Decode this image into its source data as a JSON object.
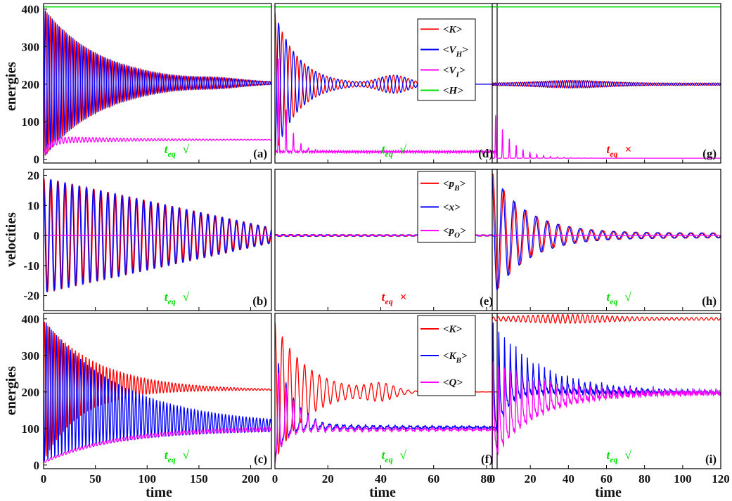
{
  "figure": {
    "ylabels": [
      "energies",
      "velocities",
      "energies"
    ],
    "xlabel": "time",
    "teq_text": "t",
    "teq_sub": "eq",
    "check": "√",
    "cross": "×"
  },
  "colors": {
    "red": "#ff0000",
    "blue": "#0000ff",
    "magenta": "#ff00ff",
    "green": "#00dd00",
    "black": "#000000"
  },
  "chart_data": [
    {
      "id": "a",
      "label": "(a)",
      "type": "line",
      "xlim": [
        0,
        220
      ],
      "ylim": [
        -10,
        415
      ],
      "yticks": [
        0,
        100,
        200,
        300,
        400
      ],
      "teq": "ok",
      "series": [
        {
          "color": "red",
          "kind": "decay",
          "x0": 0,
          "x1": 220,
          "mean": 203,
          "amp": 200,
          "period": 3.33,
          "tau": 55,
          "phase": 1.57,
          "beat": 0.03,
          "beatx": 170
        },
        {
          "color": "blue",
          "kind": "decay",
          "x0": 0,
          "x1": 220,
          "mean": 203,
          "amp": 200,
          "period": 3.33,
          "tau": 55,
          "phase": 4.71,
          "beat": 0.03,
          "beatx": 170
        },
        {
          "color": "magenta",
          "kind": "rise",
          "x0": 0,
          "x1": 220,
          "start": 10,
          "end": 52,
          "rtau": 6,
          "amp": 10,
          "period": 3.33,
          "tau": 90
        },
        {
          "color": "green",
          "kind": "flat",
          "x0": 0,
          "x1": 220,
          "value": 406
        }
      ]
    },
    {
      "id": "b",
      "label": "(b)",
      "type": "line",
      "xlim": [
        0,
        220
      ],
      "ylim": [
        -25,
        22
      ],
      "yticks": [
        -20,
        -10,
        0,
        10,
        20
      ],
      "teq": "ok",
      "series": [
        {
          "color": "red",
          "kind": "linear",
          "x0": 0,
          "x1": 220,
          "mean": 0,
          "amp": 19,
          "ampEnd": 2.5,
          "period": 6.9,
          "phase": 1.2
        },
        {
          "color": "blue",
          "kind": "linear",
          "x0": 0,
          "x1": 220,
          "mean": 0,
          "amp": 19,
          "ampEnd": 2.5,
          "period": 6.9,
          "phase": 1.75
        },
        {
          "color": "magenta",
          "kind": "flat",
          "x0": 0,
          "x1": 220,
          "value": 0
        }
      ]
    },
    {
      "id": "c",
      "label": "(c)",
      "type": "line",
      "xlim": [
        0,
        220
      ],
      "ylim": [
        -10,
        415
      ],
      "yticks": [
        0,
        100,
        200,
        300,
        400
      ],
      "teq": "ok",
      "series": [
        {
          "color": "red",
          "kind": "envelope",
          "x0": 0,
          "x1": 220,
          "top": 395,
          "topEnd": 205,
          "topTau": 55,
          "bot": 10,
          "botEnd": 205,
          "botTau": 35,
          "period": 3.33,
          "phase": 0
        },
        {
          "color": "blue",
          "kind": "envelope",
          "x0": 0,
          "x1": 220,
          "top": 400,
          "topEnd": 110,
          "topTau": 75,
          "bot": 10,
          "botEnd": 95,
          "botTau": 70,
          "period": 3.33,
          "phase": 3.14
        },
        {
          "color": "magenta",
          "kind": "envelope",
          "x0": 0,
          "x1": 220,
          "top": 10,
          "topEnd": 108,
          "topTau": 70,
          "bot": 5,
          "botEnd": 96,
          "botTau": 70,
          "period": 3.33,
          "phase": 1.5
        }
      ]
    },
    {
      "id": "d",
      "label": "(d)",
      "type": "line",
      "xlim": [
        0,
        84
      ],
      "ylim": [
        -10,
        415
      ],
      "yticks": [],
      "teq": "ok",
      "legend": [
        "<K>",
        "<V_H>",
        "<V_I>",
        "<H>"
      ],
      "legendColors": [
        "red",
        "blue",
        "magenta",
        "green"
      ],
      "series": [
        {
          "color": "red",
          "kind": "decay",
          "x0": 0,
          "x1": 84,
          "mean": 200,
          "amp": 190,
          "period": 2.8,
          "tau": 9,
          "phase": 1.57,
          "beat": 0.12,
          "beatx": 45
        },
        {
          "color": "blue",
          "kind": "decay",
          "x0": 0,
          "x1": 84,
          "mean": 200,
          "amp": 190,
          "period": 2.8,
          "tau": 9,
          "phase": 4.71,
          "beat": 0.12,
          "beatx": 45
        },
        {
          "color": "magenta",
          "kind": "spikes",
          "x0": 0,
          "x1": 84,
          "base": 20,
          "spikeAmp": 370,
          "spikeTau": 3.5,
          "period": 2.8,
          "noise": 4
        },
        {
          "color": "green",
          "kind": "flat",
          "x0": 0,
          "x1": 84,
          "value": 406
        }
      ]
    },
    {
      "id": "e",
      "label": "(e)",
      "type": "line",
      "xlim": [
        0,
        84
      ],
      "ylim": [
        -25,
        22
      ],
      "yticks": [],
      "teq": "bad",
      "legend": [
        "<p_B>",
        "<x>",
        "<p_O>"
      ],
      "legendColors": [
        "red",
        "blue",
        "magenta"
      ],
      "series": [
        {
          "color": "red",
          "kind": "decay",
          "x0": 0,
          "x1": 84,
          "mean": 0,
          "amp": 0.35,
          "period": 2.8,
          "tau": 200,
          "phase": 0
        },
        {
          "color": "blue",
          "kind": "decay",
          "x0": 0,
          "x1": 84,
          "mean": 0,
          "amp": 0.3,
          "period": 2.8,
          "tau": 200,
          "phase": 1.5
        },
        {
          "color": "magenta",
          "kind": "flat",
          "x0": 0,
          "x1": 84,
          "value": 0
        }
      ]
    },
    {
      "id": "f",
      "label": "(f)",
      "type": "line",
      "xlim": [
        0,
        84
      ],
      "ylim": [
        -10,
        415
      ],
      "yticks": [],
      "teq": "ok",
      "legend": [
        "<K>",
        "<K_B>",
        "<Q>"
      ],
      "legendColors": [
        "red",
        "blue",
        "magenta"
      ],
      "series": [
        {
          "color": "red",
          "kind": "decay",
          "x0": 0,
          "x1": 84,
          "mean": 200,
          "amp": 190,
          "period": 2.8,
          "tau": 12,
          "phase": 1.57,
          "beat": 0.1,
          "beatx": 40
        },
        {
          "color": "blue",
          "kind": "spikydecay",
          "x0": 0,
          "x1": 84,
          "mean": 103,
          "amp": 290,
          "period": 2.8,
          "tau": 6,
          "floor": 12
        },
        {
          "color": "magenta",
          "kind": "spikydecay",
          "x0": 0,
          "x1": 84,
          "mean": 97,
          "amp": 260,
          "period": 2.8,
          "tau": 6.5,
          "floor": 5
        }
      ]
    },
    {
      "id": "g",
      "label": "(g)",
      "type": "line",
      "xlim": [
        0,
        120
      ],
      "ylim": [
        -10,
        415
      ],
      "yticks": [],
      "teq": "bad",
      "series": [
        {
          "color": "red",
          "kind": "beatpack",
          "x0": 0,
          "x1": 120,
          "mean": 200,
          "amp": 10,
          "period": 2.2,
          "phase": 0,
          "center": 42,
          "width": 25
        },
        {
          "color": "blue",
          "kind": "beatpack",
          "x0": 0,
          "x1": 120,
          "mean": 200,
          "amp": 10,
          "period": 2.2,
          "phase": 3.14,
          "center": 42,
          "width": 25
        },
        {
          "color": "magenta",
          "kind": "spikes",
          "x0": 0,
          "x1": 120,
          "base": 3,
          "spikeAmp": 140,
          "spikeTau": 9,
          "period": 3.6,
          "noise": 0
        },
        {
          "color": "green",
          "kind": "flat",
          "x0": 0,
          "x1": 120,
          "value": 406
        }
      ]
    },
    {
      "id": "h",
      "label": "(h)",
      "type": "line",
      "xlim": [
        0,
        120
      ],
      "ylim": [
        -25,
        22
      ],
      "yticks": [],
      "teq": "ok",
      "series": [
        {
          "color": "red",
          "kind": "decay",
          "x0": 0,
          "x1": 120,
          "mean": 0,
          "amp": 20,
          "period": 5.8,
          "tau": 18,
          "phase": 1.2,
          "floorAmp": 0.8
        },
        {
          "color": "blue",
          "kind": "decay",
          "x0": 0,
          "x1": 120,
          "mean": 0,
          "amp": 20,
          "period": 5.8,
          "tau": 18,
          "phase": 1.9,
          "floorAmp": 0.8
        },
        {
          "color": "magenta",
          "kind": "flat",
          "x0": 0,
          "x1": 120,
          "value": 0
        }
      ]
    },
    {
      "id": "i",
      "label": "(i)",
      "type": "line",
      "xlim": [
        0,
        120
      ],
      "ylim": [
        -10,
        415
      ],
      "yticks": [],
      "teq": "ok",
      "series": [
        {
          "color": "red",
          "kind": "beatpack",
          "x0": 0,
          "x1": 120,
          "mean": 400,
          "amp": 12,
          "period": 2.6,
          "phase": 0,
          "center": 38,
          "width": 30
        },
        {
          "color": "blue",
          "kind": "envelope2",
          "x0": 0,
          "x1": 120,
          "top": 400,
          "topEnd": 202,
          "topTau": 25,
          "bot": 20,
          "botEnd": 196,
          "botTau": 6,
          "period": 3.0,
          "noise": 6
        },
        {
          "color": "magenta",
          "kind": "envelope2",
          "x0": 0,
          "x1": 120,
          "top": 290,
          "topEnd": 202,
          "topTau": 25,
          "bot": 5,
          "botEnd": 196,
          "botTau": 22,
          "period": 3.0,
          "noise": 6
        }
      ]
    }
  ],
  "xticks": {
    "left": [
      0,
      50,
      100,
      150,
      200
    ],
    "mid": [
      0,
      20,
      40,
      60,
      80
    ],
    "right": [
      0,
      20,
      40,
      60,
      80,
      100,
      120
    ]
  }
}
